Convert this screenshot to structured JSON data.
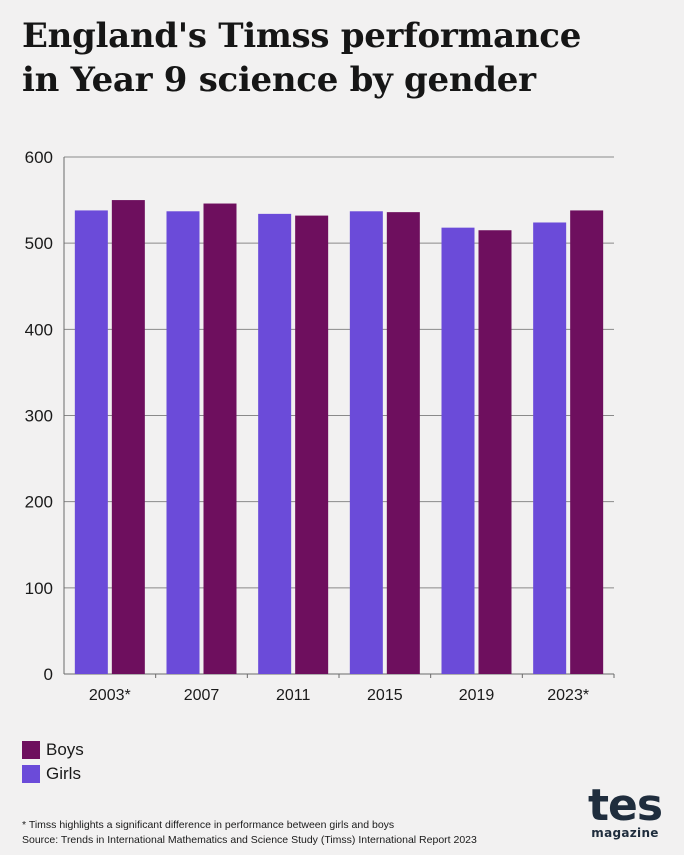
{
  "title": {
    "line1": "England's Timss performance",
    "line2": "in Year 9 science by gender"
  },
  "chart_data": {
    "type": "bar",
    "categories": [
      "2003*",
      "2007",
      "2011",
      "2015",
      "2019",
      "2023*"
    ],
    "series": [
      {
        "name": "Girls",
        "color": "#6b4bd9",
        "values": [
          538,
          537,
          534,
          537,
          518,
          524
        ]
      },
      {
        "name": "Boys",
        "color": "#6e0f5e",
        "values": [
          550,
          546,
          532,
          536,
          515,
          538
        ]
      }
    ],
    "ylim": [
      0,
      600
    ],
    "yticks": [
      0,
      100,
      200,
      300,
      400,
      500,
      600
    ],
    "grid": true
  },
  "legend": [
    {
      "label": "Boys",
      "color": "#6e0f5e"
    },
    {
      "label": "Girls",
      "color": "#6b4bd9"
    }
  ],
  "footnotes": {
    "note": "* Timss highlights a significant difference in performance between girls and boys",
    "source": "Source: Trends in International Mathematics and Science Study (Timss) International Report 2023"
  },
  "logo": {
    "main": "tes",
    "sub": "magazine"
  }
}
